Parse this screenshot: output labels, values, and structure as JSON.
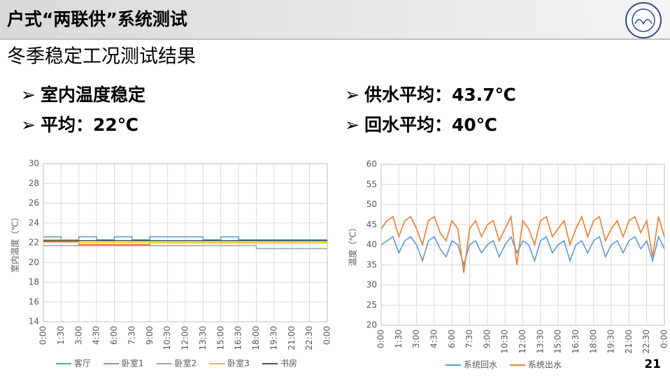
{
  "title": "户式“两联供”系统测试",
  "subtitle": "冬季稳定工况测试结果",
  "bullets": [
    "室内温度稳定",
    "平均：22℃",
    "供水平均：43.7℃",
    "回水平均：40℃"
  ],
  "page_number": "21",
  "chart_data": [
    {
      "type": "line",
      "step": true,
      "y_label": "室内温度（℃）",
      "categories": [
        "0:00",
        "1:30",
        "3:00",
        "4:30",
        "6:00",
        "7:30",
        "9:00",
        "10:30",
        "12:00",
        "13:30",
        "15:00",
        "16:30",
        "18:00",
        "19:30",
        "21:00",
        "22:30",
        "0:00"
      ],
      "ylim": [
        14,
        30
      ],
      "yticks": [
        14,
        16,
        18,
        20,
        22,
        24,
        26,
        28,
        30
      ],
      "grid": true,
      "series": [
        {
          "name": "客厅",
          "color": "#5b9bd5",
          "values": [
            22.6,
            22.3,
            22.6,
            22.3,
            22.6,
            22.3,
            22.6,
            22.6,
            22.6,
            22.3,
            22.6,
            22.3,
            22.3,
            22.3,
            22.3,
            22.3,
            22.3
          ]
        },
        {
          "name": "卧室1",
          "color": "#ed7d31",
          "values": [
            22.1,
            22.1,
            21.8,
            21.8,
            21.8,
            21.8,
            22.0,
            22.0,
            22.0,
            22.0,
            22.0,
            22.0,
            22.0,
            22.0,
            22.0,
            22.0,
            22.0
          ]
        },
        {
          "name": "卧室2",
          "color": "#a5a5a5",
          "values": [
            21.7,
            21.7,
            21.7,
            21.7,
            21.7,
            21.7,
            21.7,
            21.7,
            21.7,
            21.7,
            21.7,
            21.7,
            21.4,
            21.4,
            21.4,
            21.4,
            21.4
          ]
        },
        {
          "name": "卧室3",
          "color": "#ffc000",
          "values": [
            22.3,
            22.3,
            22.0,
            22.0,
            22.0,
            22.0,
            22.0,
            22.0,
            22.0,
            22.0,
            22.0,
            22.0,
            22.0,
            22.0,
            22.0,
            22.0,
            22.0
          ]
        },
        {
          "name": "书房",
          "color": "#44546a",
          "values": [
            22.2,
            22.2,
            22.2,
            22.2,
            22.2,
            22.2,
            22.2,
            22.2,
            22.2,
            22.2,
            22.2,
            22.2,
            22.2,
            22.2,
            22.2,
            22.2,
            22.2
          ]
        }
      ]
    },
    {
      "type": "line",
      "step": false,
      "y_label": "温度（℃）",
      "categories": [
        "0:00",
        null,
        null,
        "1:30",
        null,
        null,
        "3:00",
        null,
        null,
        "4:30",
        null,
        null,
        "6:00",
        null,
        null,
        "7:30",
        null,
        null,
        "9:00",
        null,
        null,
        "10:30",
        null,
        null,
        "12:00",
        null,
        null,
        "13:30",
        null,
        null,
        "15:00",
        null,
        null,
        "16:30",
        null,
        null,
        "18:00",
        null,
        null,
        "19:30",
        null,
        null,
        "21:00",
        null,
        null,
        "22:30",
        null,
        null,
        "0:00"
      ],
      "ylim": [
        20,
        60
      ],
      "yticks": [
        20,
        25,
        30,
        35,
        40,
        45,
        50,
        55,
        60
      ],
      "grid": true,
      "series": [
        {
          "name": "系统回水",
          "color": "#5b9bd5",
          "values": [
            40,
            41,
            42,
            38,
            41,
            42,
            40,
            36,
            41,
            42,
            39,
            37,
            41,
            40,
            35,
            40,
            41,
            38,
            40,
            41,
            37,
            40,
            42,
            38,
            41,
            40,
            36,
            41,
            42,
            38,
            40,
            41,
            36,
            40,
            41,
            38,
            41,
            42,
            37,
            40,
            41,
            38,
            41,
            42,
            39,
            41,
            36,
            42,
            39
          ]
        },
        {
          "name": "系统出水",
          "color": "#ed7d31",
          "values": [
            44,
            46,
            47,
            42,
            46,
            47,
            44,
            40,
            46,
            47,
            43,
            41,
            46,
            44,
            33,
            44,
            46,
            42,
            45,
            46,
            41,
            44,
            47,
            35,
            46,
            44,
            40,
            46,
            47,
            42,
            44,
            46,
            40,
            44,
            47,
            42,
            46,
            47,
            41,
            44,
            46,
            42,
            46,
            47,
            43,
            46,
            37,
            47,
            42
          ]
        }
      ]
    }
  ]
}
